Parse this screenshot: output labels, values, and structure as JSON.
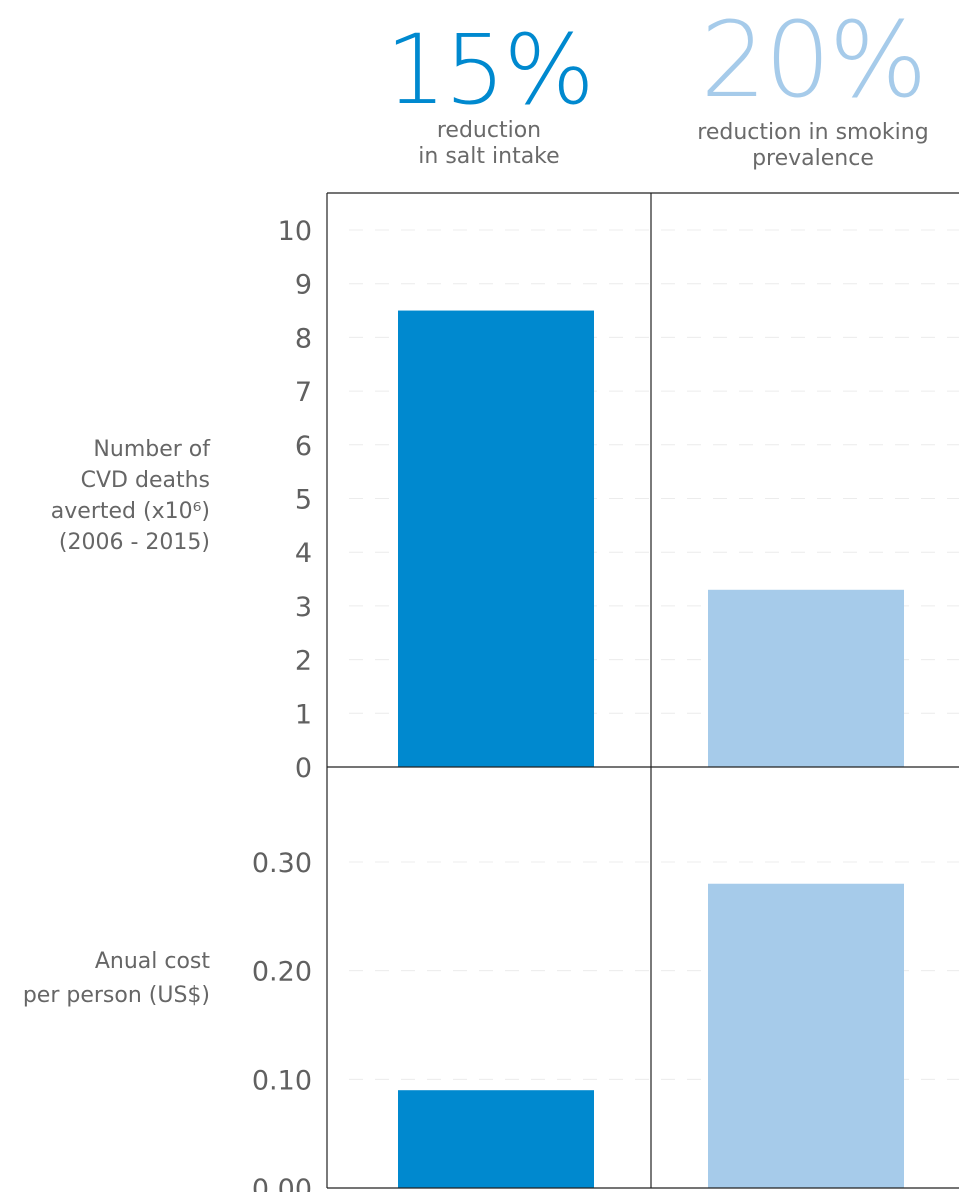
{
  "headers": [
    {
      "value": "15%",
      "caption": "reduction\nin salt intake",
      "color": "#0089cf"
    },
    {
      "value": "20%",
      "caption": "reduction in smoking\nprevalence",
      "color": "#a6cbea"
    }
  ],
  "chart_data": [
    {
      "type": "bar",
      "categories": [
        "reduction in salt intake",
        "reduction in smoking prevalence"
      ],
      "values": [
        8.5,
        3.3
      ],
      "ylabel": "Number of\nCVD deaths\naverted (x10⁶)\n(2006 - 2015)",
      "ylim": [
        0,
        10
      ],
      "yticks": [
        "0",
        "1",
        "2",
        "3",
        "4",
        "5",
        "6",
        "7",
        "8",
        "9",
        "10"
      ],
      "colors": [
        "#0089cf",
        "#a6cbea"
      ],
      "grid": true
    },
    {
      "type": "bar",
      "categories": [
        "reduction in salt intake",
        "reduction in smoking prevalence"
      ],
      "values": [
        0.09,
        0.28
      ],
      "ylabel": "Anual cost\nper person (US$)",
      "ylim": [
        0,
        0.36
      ],
      "yticks": [
        "0.00",
        "0.10",
        "0.20",
        "0.30"
      ],
      "colors": [
        "#0089cf",
        "#a6cbea"
      ],
      "grid": true
    }
  ]
}
